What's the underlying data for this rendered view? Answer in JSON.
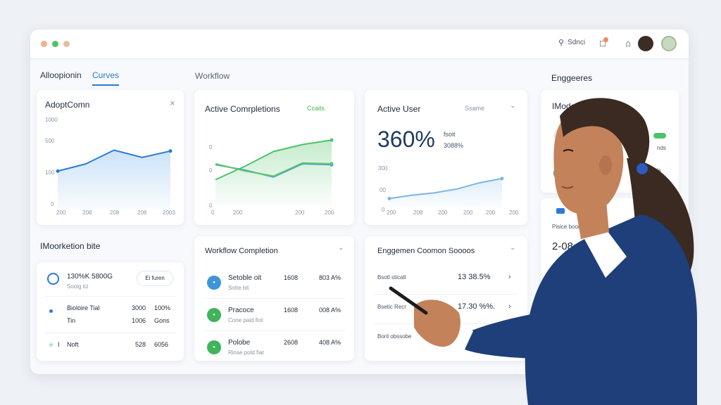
{
  "titlebar": {
    "search_label": "Sdnci",
    "colors": {
      "dot1": "#f3b28a",
      "dot2": "#4cc36a",
      "dot3": "#e3c19b"
    }
  },
  "tabs": [
    {
      "label": "Alloopionin"
    },
    {
      "label": "Curves"
    }
  ],
  "sections": {
    "workflow": "Workflow",
    "engageres": "Enggeeres",
    "workstation": "IMoorketion bite"
  },
  "adoption_card": {
    "title": "AdoptComn",
    "close": "×",
    "y_ticks": [
      "1000",
      "500",
      "100",
      "0"
    ],
    "x_ticks": [
      "200",
      "208",
      "208",
      "208",
      "2003"
    ],
    "chart_data": {
      "type": "area",
      "x": [
        1,
        2,
        3,
        4,
        5
      ],
      "values": [
        42,
        50,
        65,
        57,
        64
      ],
      "ylim": [
        0,
        100
      ]
    }
  },
  "active_completions_card": {
    "title": "Active Comrpletions",
    "badge": "Ccaits",
    "y_ticks": [
      "0",
      "0",
      "0"
    ],
    "x_ticks": [
      "0",
      "200",
      "200",
      "200"
    ],
    "chart_data": {
      "type": "line",
      "series": [
        {
          "values": [
            30,
            45,
            62,
            70,
            75
          ],
          "color": "#4cc36a"
        },
        {
          "values": [
            47,
            41,
            33,
            48,
            47
          ],
          "color": "#4b9bd6"
        },
        {
          "values": [
            48,
            40,
            34,
            49,
            48
          ],
          "color": "#62c46e"
        }
      ],
      "ylim": [
        0,
        100
      ]
    }
  },
  "active_user_card": {
    "title": "Active User",
    "badge": "Ssame",
    "big_value": "360%",
    "sub1": "fsoit",
    "sub2": "3088%",
    "y_ticks": [
      "300",
      "00",
      "0"
    ],
    "x_ticks": [
      "200",
      "208",
      "200",
      "200",
      "200",
      "200"
    ],
    "chart_data": {
      "type": "area",
      "x": [
        1,
        2,
        3,
        4,
        5,
        6
      ],
      "values": [
        20,
        27,
        32,
        40,
        53,
        62
      ],
      "ylim": [
        0,
        100
      ]
    }
  },
  "engagement_side_card": {
    "title": "IModer",
    "rows": [
      "nds",
      "ls"
    ],
    "badge": "",
    "sub": "Pisice boor",
    "big": "2-08"
  },
  "workstation_card": {
    "header_main": "130%K 5800G",
    "header_sub": "Sooig tiz",
    "button": "Ei furen",
    "rows": [
      {
        "label": "Bioloire Tial",
        "label2": "Tin",
        "v1": "3000",
        "v2": "1006",
        "pct": "100%",
        "pct2": "Gons",
        "color": "#2b7bd3"
      },
      {
        "label": "Noft",
        "label2": "",
        "v1": "528",
        "v2": "",
        "pct": "6056",
        "pct2": "",
        "color": "#4cc36a",
        "prefix": "I"
      }
    ]
  },
  "workflow_completion_card": {
    "title": "Workflow Completion",
    "rows": [
      {
        "name": "Setoble oit",
        "sub": "Sotte bit",
        "v1": "1608",
        "v2": "803 A%",
        "icon_color": "#3e95d8",
        "icon": "●"
      },
      {
        "name": "Pracoce",
        "sub": "Cone paid fiot",
        "v1": "1608",
        "v2": "008 A%",
        "icon_color": "#3fb45b",
        "icon": "●"
      },
      {
        "name": "Polobe",
        "sub": "Rinse pold fiat",
        "v1": "2608",
        "v2": "408 A%",
        "icon_color": "#3fb45b",
        "icon": "●"
      }
    ]
  },
  "engagement_card": {
    "title": "Enggemen Coomon Soooos",
    "rows": [
      {
        "label": "Bsotl sticatl",
        "value": "13 38.5%",
        "green": false
      },
      {
        "label": "Bsetic Recr",
        "value": "17.30 %%.",
        "green": true
      },
      {
        "label": "Boril obssobe",
        "value": "",
        "green": false
      }
    ]
  }
}
